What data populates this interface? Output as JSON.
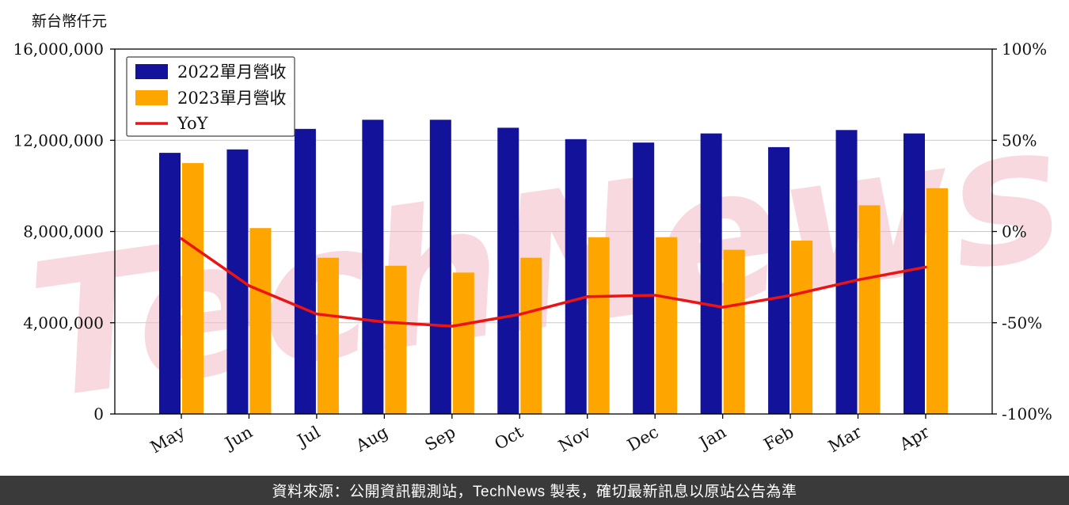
{
  "page": {
    "unit_label": "新台幣仟元",
    "watermark": "TechNews",
    "footer": "資料來源：公開資訊觀測站，TechNews 製表，確切最新訊息以原站公告為準"
  },
  "chart_data": {
    "type": "bar",
    "title": "",
    "categories": [
      "May",
      "Jun",
      "Jul",
      "Aug",
      "Sep",
      "Oct",
      "Nov",
      "Dec",
      "Jan",
      "Feb",
      "Mar",
      "Apr"
    ],
    "series": [
      {
        "name": "2022單月營收",
        "type": "bar",
        "axis": "left",
        "color": "#12129b",
        "values": [
          11450000,
          11600000,
          12500000,
          12900000,
          12900000,
          12550000,
          12050000,
          11900000,
          12300000,
          11700000,
          12450000,
          12300000
        ]
      },
      {
        "name": "2023單月營收",
        "type": "bar",
        "axis": "left",
        "color": "#ffa500",
        "values": [
          11000000,
          8150000,
          6850000,
          6500000,
          6200000,
          6850000,
          7750000,
          7750000,
          7200000,
          7600000,
          9150000,
          9900000
        ]
      },
      {
        "name": "YoY",
        "type": "line",
        "axis": "right",
        "color": "#ec1313",
        "values": [
          -3.9,
          -29.7,
          -45.2,
          -49.6,
          -51.9,
          -45.4,
          -35.7,
          -34.9,
          -41.5,
          -35.0,
          -26.5,
          -19.5
        ]
      }
    ],
    "left_axis": {
      "min": 0,
      "max": 16000000,
      "ticks": [
        0,
        4000000,
        8000000,
        12000000,
        16000000
      ],
      "tick_labels": [
        "0",
        "4,000,000",
        "8,000,000",
        "12,000,000",
        "16,000,000"
      ]
    },
    "right_axis": {
      "min": -100,
      "max": 100,
      "ticks": [
        -100,
        -50,
        0,
        50,
        100
      ],
      "tick_labels": [
        "-100%",
        "-50%",
        "0%",
        "50%",
        "100%"
      ]
    },
    "grid": true,
    "legend_position": "top-left",
    "colors": {
      "grid_line": "#c9c9c9",
      "axis_border": "#000000",
      "watermark_pink": "#f2b9c6",
      "footer_bg": "#3a3a3a"
    }
  }
}
